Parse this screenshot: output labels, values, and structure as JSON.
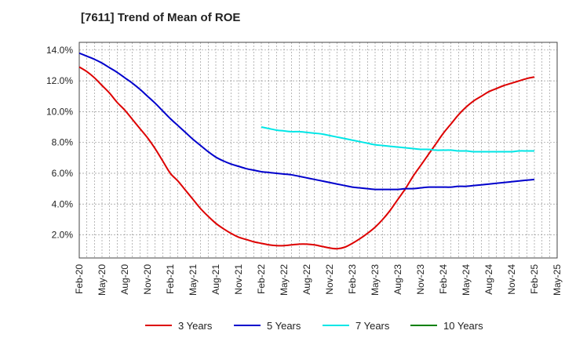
{
  "chart_data": {
    "type": "line",
    "title": "[7611]  Trend of Mean of ROE",
    "xlabel": "",
    "ylabel": "",
    "x_tick_labels": [
      "Feb-20",
      "May-20",
      "Aug-20",
      "Nov-20",
      "Feb-21",
      "May-21",
      "Aug-21",
      "Nov-21",
      "Feb-22",
      "May-22",
      "Aug-22",
      "Nov-22",
      "Feb-23",
      "May-23",
      "Aug-23",
      "Nov-23",
      "Feb-24",
      "May-24",
      "Aug-24",
      "Nov-24",
      "Feb-25",
      "May-25"
    ],
    "y_tick_labels": [
      "2.0%",
      "4.0%",
      "6.0%",
      "8.0%",
      "10.0%",
      "12.0%",
      "14.0%"
    ],
    "y_ticks": [
      2,
      4,
      6,
      8,
      10,
      12,
      14
    ],
    "ylim": [
      0.5,
      14.5
    ],
    "grid": true,
    "legend_position": "bottom",
    "series": [
      {
        "name": "3 Years",
        "color": "#dd0000",
        "x": [
          "Feb-20",
          "Mar-20",
          "Apr-20",
          "May-20",
          "Jun-20",
          "Jul-20",
          "Aug-20",
          "Sep-20",
          "Oct-20",
          "Nov-20",
          "Dec-20",
          "Jan-21",
          "Feb-21",
          "Mar-21",
          "Apr-21",
          "May-21",
          "Jun-21",
          "Jul-21",
          "Aug-21",
          "Sep-21",
          "Oct-21",
          "Nov-21",
          "Dec-21",
          "Jan-22",
          "Feb-22",
          "Mar-22",
          "Apr-22",
          "May-22",
          "Jun-22",
          "Jul-22",
          "Aug-22",
          "Sep-22",
          "Oct-22",
          "Nov-22",
          "Dec-22",
          "Jan-23",
          "Feb-23",
          "Mar-23",
          "Apr-23",
          "May-23",
          "Jun-23",
          "Jul-23",
          "Aug-23",
          "Sep-23",
          "Oct-23",
          "Nov-23",
          "Dec-23",
          "Jan-24",
          "Feb-24",
          "Mar-24",
          "Apr-24",
          "May-24",
          "Jun-24",
          "Jul-24",
          "Aug-24",
          "Sep-24",
          "Oct-24",
          "Nov-24",
          "Dec-24",
          "Jan-25",
          "Feb-25"
        ],
        "values": [
          12.9,
          12.6,
          12.2,
          11.7,
          11.2,
          10.6,
          10.1,
          9.5,
          8.9,
          8.3,
          7.6,
          6.8,
          6.0,
          5.5,
          4.9,
          4.3,
          3.7,
          3.2,
          2.75,
          2.4,
          2.1,
          1.85,
          1.7,
          1.55,
          1.45,
          1.35,
          1.3,
          1.3,
          1.35,
          1.4,
          1.4,
          1.35,
          1.25,
          1.15,
          1.1,
          1.2,
          1.45,
          1.75,
          2.1,
          2.5,
          3.0,
          3.6,
          4.3,
          5.0,
          5.8,
          6.5,
          7.2,
          7.9,
          8.6,
          9.2,
          9.8,
          10.3,
          10.7,
          11.0,
          11.3,
          11.5,
          11.7,
          11.85,
          12.0,
          12.15,
          12.25
        ]
      },
      {
        "name": "5 Years",
        "color": "#0000cc",
        "x": [
          "Feb-20",
          "Mar-20",
          "Apr-20",
          "May-20",
          "Jun-20",
          "Jul-20",
          "Aug-20",
          "Sep-20",
          "Oct-20",
          "Nov-20",
          "Dec-20",
          "Jan-21",
          "Feb-21",
          "Mar-21",
          "Apr-21",
          "May-21",
          "Jun-21",
          "Jul-21",
          "Aug-21",
          "Sep-21",
          "Oct-21",
          "Nov-21",
          "Dec-21",
          "Jan-22",
          "Feb-22",
          "Mar-22",
          "Apr-22",
          "May-22",
          "Jun-22",
          "Jul-22",
          "Aug-22",
          "Sep-22",
          "Oct-22",
          "Nov-22",
          "Dec-22",
          "Jan-23",
          "Feb-23",
          "Mar-23",
          "Apr-23",
          "May-23",
          "Jun-23",
          "Jul-23",
          "Aug-23",
          "Sep-23",
          "Oct-23",
          "Nov-23",
          "Dec-23",
          "Jan-24",
          "Feb-24",
          "Mar-24",
          "Apr-24",
          "May-24",
          "Jun-24",
          "Jul-24",
          "Aug-24",
          "Sep-24",
          "Oct-24",
          "Nov-24",
          "Dec-24",
          "Jan-25",
          "Feb-25"
        ],
        "values": [
          13.8,
          13.6,
          13.4,
          13.15,
          12.85,
          12.55,
          12.2,
          11.85,
          11.45,
          11.0,
          10.55,
          10.05,
          9.55,
          9.1,
          8.65,
          8.2,
          7.8,
          7.4,
          7.05,
          6.8,
          6.6,
          6.45,
          6.3,
          6.2,
          6.1,
          6.05,
          6.0,
          5.95,
          5.9,
          5.8,
          5.7,
          5.6,
          5.5,
          5.4,
          5.3,
          5.2,
          5.1,
          5.05,
          5.0,
          4.95,
          4.95,
          4.95,
          4.95,
          5.0,
          5.0,
          5.05,
          5.1,
          5.1,
          5.1,
          5.1,
          5.15,
          5.15,
          5.2,
          5.25,
          5.3,
          5.35,
          5.4,
          5.45,
          5.5,
          5.55,
          5.6
        ]
      },
      {
        "name": "7 Years",
        "color": "#00e6e6",
        "x": [
          "Feb-22",
          "Mar-22",
          "Apr-22",
          "May-22",
          "Jun-22",
          "Jul-22",
          "Aug-22",
          "Sep-22",
          "Oct-22",
          "Nov-22",
          "Dec-22",
          "Jan-23",
          "Feb-23",
          "Mar-23",
          "Apr-23",
          "May-23",
          "Jun-23",
          "Jul-23",
          "Aug-23",
          "Sep-23",
          "Oct-23",
          "Nov-23",
          "Dec-23",
          "Jan-24",
          "Feb-24",
          "Mar-24",
          "Apr-24",
          "May-24",
          "Jun-24",
          "Jul-24",
          "Aug-24",
          "Sep-24",
          "Oct-24",
          "Nov-24",
          "Dec-24",
          "Jan-25",
          "Feb-25"
        ],
        "values": [
          9.0,
          8.9,
          8.8,
          8.75,
          8.7,
          8.7,
          8.65,
          8.6,
          8.55,
          8.45,
          8.35,
          8.25,
          8.15,
          8.05,
          7.95,
          7.85,
          7.8,
          7.75,
          7.7,
          7.65,
          7.6,
          7.55,
          7.55,
          7.5,
          7.5,
          7.5,
          7.45,
          7.45,
          7.4,
          7.4,
          7.4,
          7.4,
          7.4,
          7.4,
          7.45,
          7.45,
          7.45
        ]
      },
      {
        "name": "10 Years",
        "color": "#008000",
        "x": [],
        "values": []
      }
    ]
  }
}
